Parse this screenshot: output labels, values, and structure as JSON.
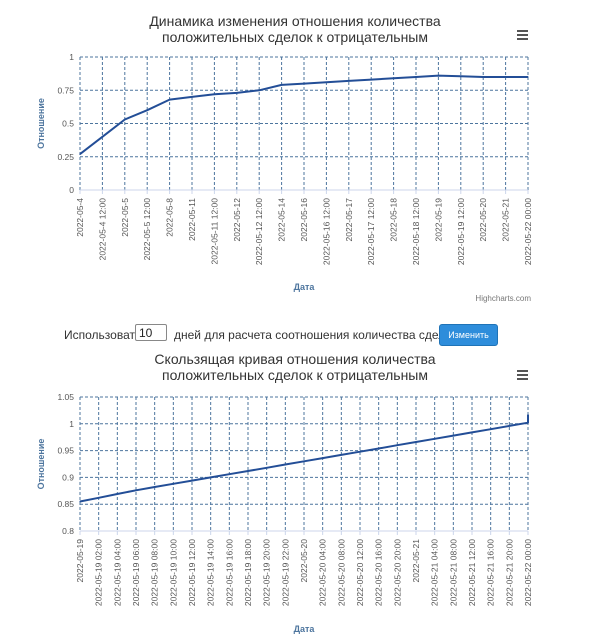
{
  "controls": {
    "use_label": "Использовать",
    "days_value": "10",
    "days_label": "дней для расчета соотношения количества сделока",
    "apply_button": "Изменить"
  },
  "colors": {
    "line": "#234e97",
    "grid": "#4d759e",
    "axis_title": "#4d759e"
  },
  "chart_data": [
    {
      "type": "line",
      "title_lines": [
        "Динамика изменения отношения количества",
        "положительных сделок к отрицательным"
      ],
      "xlabel": "Дата",
      "ylabel": "Отношение",
      "ylim": [
        0,
        1
      ],
      "yticks": [
        "0",
        "0.25",
        "0.5",
        "0.75",
        "1"
      ],
      "xticks": [
        "2022-05-4",
        "2022-05-4 12:00",
        "2022-05-5",
        "2022-05-5 12:00",
        "2022-05-8",
        "2022-05-11",
        "2022-05-11 12:00",
        "2022-05-12",
        "2022-05-12 12:00",
        "2022-05-14",
        "2022-05-16",
        "2022-05-16 12:00",
        "2022-05-17",
        "2022-05-17 12:00",
        "2022-05-18",
        "2022-05-18 12:00",
        "2022-05-19",
        "2022-05-19 12:00",
        "2022-05-20",
        "2022-05-21",
        "2022-05-22 00:00"
      ],
      "values": [
        0.27,
        0.4,
        0.53,
        0.6,
        0.68,
        0.7,
        0.72,
        0.73,
        0.75,
        0.79,
        0.8,
        0.81,
        0.82,
        0.83,
        0.84,
        0.85,
        0.86,
        0.855,
        0.85,
        0.85,
        0.85
      ],
      "grid": true,
      "credits": "Highcharts.com"
    },
    {
      "type": "line",
      "title_lines": [
        "Скользящая кривая отношения количества",
        "положительных сделок к отрицательным"
      ],
      "xlabel": "Дата",
      "ylabel": "Отношение",
      "ylim": [
        0.8,
        1.05
      ],
      "yticks": [
        "0.8",
        "0.85",
        "0.9",
        "0.95",
        "1",
        "1.05"
      ],
      "xticks": [
        "2022-05-19",
        "2022-05-19 02:00",
        "2022-05-19 04:00",
        "2022-05-19 06:00",
        "2022-05-19 08:00",
        "2022-05-19 10:00",
        "2022-05-19 12:00",
        "2022-05-19 14:00",
        "2022-05-19 16:00",
        "2022-05-19 18:00",
        "2022-05-19 20:00",
        "2022-05-19 22:00",
        "2022-05-20",
        "2022-05-20 04:00",
        "2022-05-20 08:00",
        "2022-05-20 12:00",
        "2022-05-20 16:00",
        "2022-05-20 20:00",
        "2022-05-21",
        "2022-05-21 04:00",
        "2022-05-21 08:00",
        "2022-05-21 12:00",
        "2022-05-21 16:00",
        "2022-05-21 20:00",
        "2022-05-22 00:00"
      ],
      "values": [
        0.855,
        0.862,
        0.869,
        0.876,
        0.882,
        0.888,
        0.894,
        0.9,
        0.906,
        0.912,
        0.918,
        0.924,
        0.93,
        0.936,
        0.942,
        0.948,
        0.954,
        0.96,
        0.966,
        0.972,
        0.978,
        0.984,
        0.99,
        0.996,
        1.002
      ],
      "values_end": 1.017,
      "grid": true
    }
  ]
}
